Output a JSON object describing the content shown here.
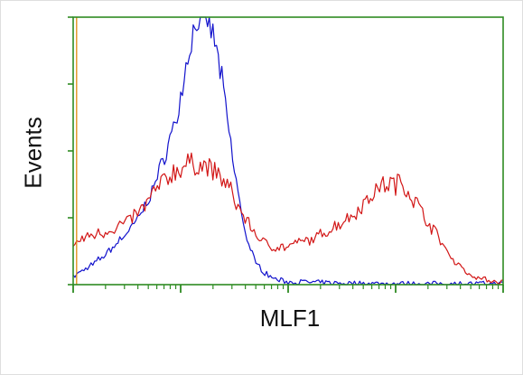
{
  "chart_data": {
    "type": "line",
    "title": "",
    "xlabel": "MLF1",
    "ylabel": "Events",
    "x_scale": "log",
    "xlim": [
      0,
      1
    ],
    "ylim": [
      0,
      1
    ],
    "grid": false,
    "legend": "none",
    "colors": {
      "axes": "#2e8b22",
      "blue": "#1212cc",
      "red": "#d21616",
      "orange": "#e08a10"
    },
    "series": [
      {
        "color": "#1212cc",
        "x": [
          0.0,
          0.02,
          0.05,
          0.08,
          0.11,
          0.14,
          0.17,
          0.2,
          0.22,
          0.24,
          0.25,
          0.26,
          0.27,
          0.28,
          0.29,
          0.3,
          0.31,
          0.32,
          0.33,
          0.34,
          0.35,
          0.36,
          0.37,
          0.38,
          0.39,
          0.4,
          0.41,
          0.42,
          0.43,
          0.45,
          0.47,
          0.5,
          0.53,
          0.56,
          0.6,
          0.65,
          0.7,
          0.8,
          0.9,
          1.0
        ],
        "y": [
          0.03,
          0.05,
          0.08,
          0.12,
          0.17,
          0.22,
          0.3,
          0.42,
          0.52,
          0.62,
          0.7,
          0.8,
          0.88,
          0.95,
          1.0,
          0.98,
          1.0,
          0.96,
          0.9,
          0.82,
          0.72,
          0.6,
          0.48,
          0.38,
          0.28,
          0.2,
          0.14,
          0.1,
          0.07,
          0.04,
          0.02,
          0.01,
          0.01,
          0.008,
          0.006,
          0.005,
          0.004,
          0.003,
          0.003,
          0.003
        ]
      },
      {
        "color": "#d21616",
        "x": [
          0.0,
          0.02,
          0.05,
          0.08,
          0.12,
          0.16,
          0.2,
          0.24,
          0.27,
          0.3,
          0.33,
          0.36,
          0.38,
          0.4,
          0.42,
          0.44,
          0.47,
          0.5,
          0.53,
          0.56,
          0.59,
          0.62,
          0.65,
          0.68,
          0.7,
          0.72,
          0.74,
          0.75,
          0.76,
          0.78,
          0.8,
          0.82,
          0.84,
          0.86,
          0.88,
          0.9,
          0.92,
          0.95,
          1.0
        ],
        "y": [
          0.15,
          0.17,
          0.19,
          0.2,
          0.23,
          0.28,
          0.37,
          0.43,
          0.45,
          0.45,
          0.42,
          0.37,
          0.3,
          0.25,
          0.2,
          0.16,
          0.14,
          0.14,
          0.16,
          0.17,
          0.2,
          0.23,
          0.26,
          0.31,
          0.35,
          0.37,
          0.38,
          0.37,
          0.39,
          0.35,
          0.3,
          0.25,
          0.2,
          0.15,
          0.1,
          0.07,
          0.04,
          0.02,
          0.01
        ]
      }
    ]
  }
}
